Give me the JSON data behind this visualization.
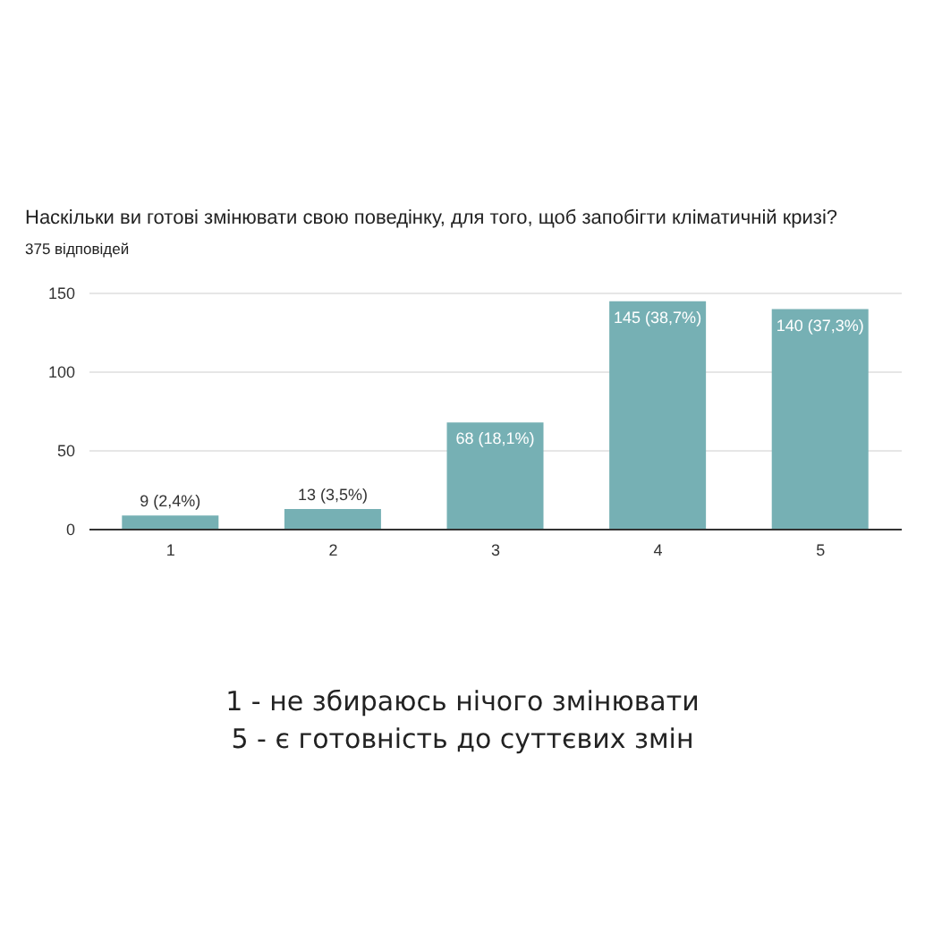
{
  "chart_data": {
    "type": "bar",
    "title": "Наскільки ви готові змінювати свою поведінку, для того, щоб запобігти кліматичній кризі?",
    "subtitle": "375 відповідей",
    "categories": [
      "1",
      "2",
      "3",
      "4",
      "5"
    ],
    "values": [
      9,
      13,
      68,
      145,
      140
    ],
    "value_labels": [
      "9 (2,4%)",
      "13 (3,5%)",
      "68 (18,1%)",
      "145 (38,7%)",
      "140 (37,3%)"
    ],
    "color": "#76b0b4",
    "ylim": [
      0,
      150
    ],
    "yticks": [
      0,
      50,
      100,
      150
    ],
    "grid": "y",
    "annotations": [
      "1 - не збираюсь нічого змінювати",
      "5 - є готовність до суттєвих змін"
    ]
  }
}
